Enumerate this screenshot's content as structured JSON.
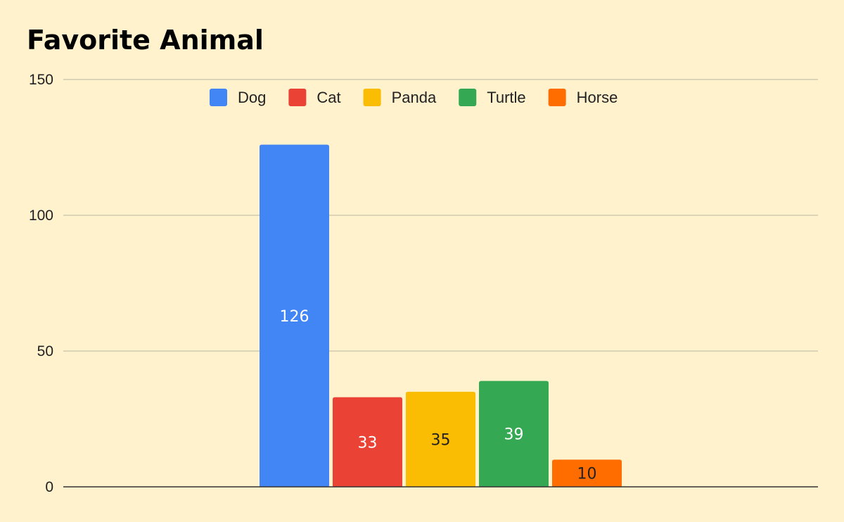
{
  "chart_data": {
    "type": "bar",
    "title": "Favorite Animal",
    "xlabel": "",
    "ylabel": "",
    "ylim": [
      0,
      150
    ],
    "yticks": [
      0,
      50,
      100,
      150
    ],
    "grid": true,
    "legend_position": "top",
    "series": [
      {
        "name": "Dog",
        "value": 126,
        "color": "#4285f4",
        "label_color": "#ffffff"
      },
      {
        "name": "Cat",
        "value": 33,
        "color": "#ea4335",
        "label_color": "#ffffff"
      },
      {
        "name": "Panda",
        "value": 35,
        "color": "#fbbc04",
        "label_color": "#222222"
      },
      {
        "name": "Turtle",
        "value": 39,
        "color": "#34a853",
        "label_color": "#ffffff"
      },
      {
        "name": "Horse",
        "value": 10,
        "color": "#ff6d01",
        "label_color": "#222222"
      }
    ]
  },
  "background_color": "#fff2cc"
}
